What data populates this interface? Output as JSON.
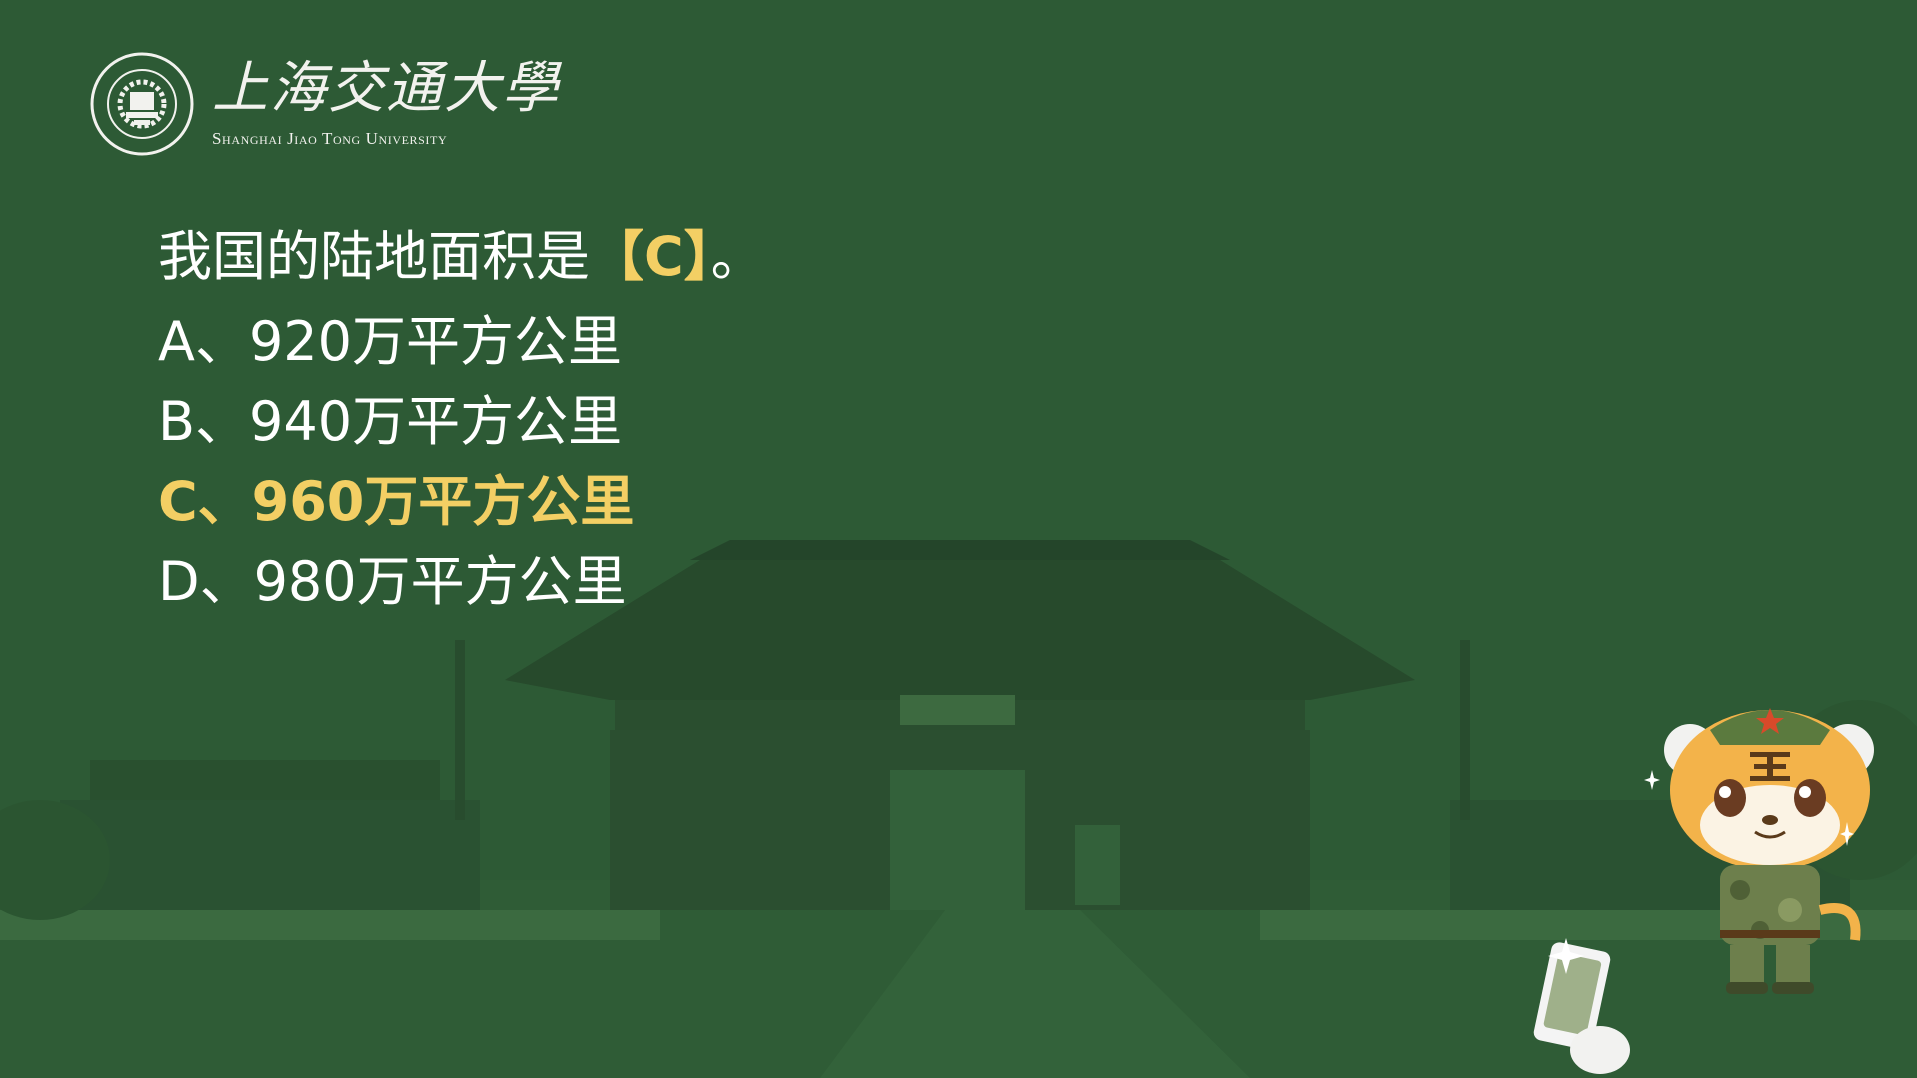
{
  "logo": {
    "name_cn": "上海交通大學",
    "name_en": "Shanghai Jiao Tong University",
    "seal_icon": "sjtu-seal-icon"
  },
  "question": {
    "stem": "我国的陆地面积是",
    "answer_mark": "【C】",
    "ending": "。"
  },
  "options": [
    {
      "text": "A、920万平方公里",
      "correct": false
    },
    {
      "text": "B、940万平方公里",
      "correct": false
    },
    {
      "text": "C、960万平方公里",
      "correct": true
    },
    {
      "text": "D、980万平方公里",
      "correct": false
    }
  ],
  "colors": {
    "background": "#2d5a35",
    "highlight": "#f3cf64",
    "text": "#ffffff"
  },
  "decorations": {
    "background_image": "campus-gate-image",
    "mascot": "tiger-mascot-icon",
    "phone": "phone-icon",
    "sparkle": "sparkle-icon"
  }
}
